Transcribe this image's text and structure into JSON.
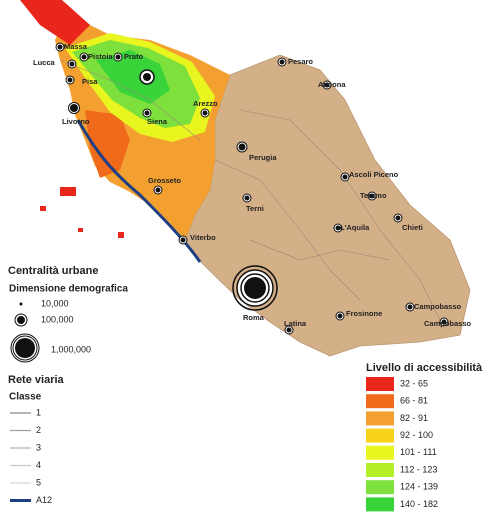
{
  "cities": [
    {
      "label": "Massa"
    },
    {
      "label": "Lucca"
    },
    {
      "label": "Pistoia"
    },
    {
      "label": "Prato"
    },
    {
      "label": "Pisa"
    },
    {
      "label": "Livorno"
    },
    {
      "label": "Siena"
    },
    {
      "label": "Arezzo"
    },
    {
      "label": "Perugia"
    },
    {
      "label": "Grosseto"
    },
    {
      "label": "Pesaro"
    },
    {
      "label": "Ancona"
    },
    {
      "label": "Ascoli Piceno"
    },
    {
      "label": "Teramo"
    },
    {
      "label": "Chieti"
    },
    {
      "label": "Terni"
    },
    {
      "label": "L'Aquila"
    },
    {
      "label": "Viterbo"
    },
    {
      "label": "Roma"
    },
    {
      "label": "Latina"
    },
    {
      "label": "Frosinone"
    },
    {
      "label": "Campobasso"
    },
    {
      "label": "Campobasso"
    }
  ],
  "urban_legend": {
    "title": "Centralità urbane",
    "subtitle": "Dimensione demografica",
    "sizes": [
      "10,000",
      "100,000",
      "1,000,000"
    ]
  },
  "road_legend": {
    "title": "Rete viaria",
    "subtitle": "Classe",
    "classes": [
      {
        "label": "1",
        "color": "#8a8a8a"
      },
      {
        "label": "2",
        "color": "#a0a0a0"
      },
      {
        "label": "3",
        "color": "#b5b5b5"
      },
      {
        "label": "4",
        "color": "#c8c8c8"
      },
      {
        "label": "5",
        "color": "#d8d8d8"
      },
      {
        "label": "A12",
        "color": "#1f3f85"
      }
    ]
  },
  "access_legend": {
    "title": "Livello di accessibilità",
    "classes": [
      {
        "label": "32 - 65",
        "color": "#e8261c"
      },
      {
        "label": "66 - 81",
        "color": "#f06a1c"
      },
      {
        "label": "82 - 91",
        "color": "#f3a030"
      },
      {
        "label": "92 - 100",
        "color": "#f7d31c"
      },
      {
        "label": "101 - 111",
        "color": "#e9f51e"
      },
      {
        "label": "112 - 123",
        "color": "#b5ef2a"
      },
      {
        "label": "124 - 139",
        "color": "#7ee03c"
      },
      {
        "label": "140 - 182",
        "color": "#39d43a"
      }
    ]
  }
}
